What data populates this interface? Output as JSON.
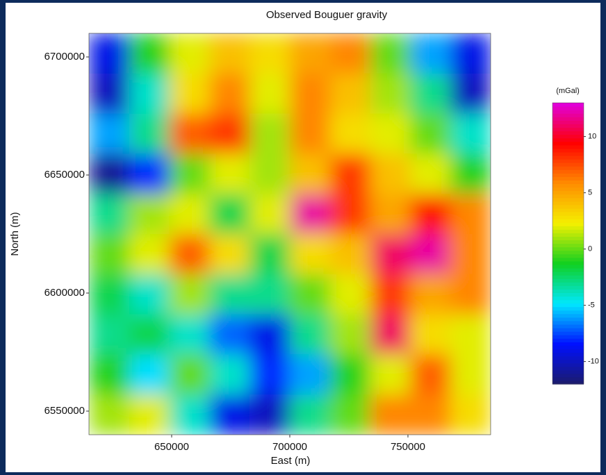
{
  "chart_data": {
    "type": "heatmap",
    "title": "Observed Bouguer gravity",
    "x_label": "East (m)",
    "y_label": "North (m)",
    "colorbar_label": "(mGal)",
    "xlim": [
      615000,
      785000
    ],
    "ylim": [
      6540000,
      6710000
    ],
    "xticks": [
      650000,
      700000,
      750000
    ],
    "yticks": [
      6550000,
      6600000,
      6650000,
      6700000
    ],
    "clim": [
      -12,
      13
    ],
    "cticks": [
      -10,
      -5,
      0,
      5,
      10
    ],
    "colorscale": [
      "#1c1c6a",
      "#0010ff",
      "#00e8ff",
      "#10d020",
      "#f4f000",
      "#ff8c00",
      "#ff0000",
      "#e000e0"
    ],
    "z": [
      [
        -9,
        -1,
        2,
        4,
        3,
        5,
        6,
        0,
        -6,
        -9
      ],
      [
        -10,
        -4,
        3,
        6,
        2,
        6,
        4,
        1,
        -3,
        -10
      ],
      [
        -6,
        -3,
        7,
        8,
        1,
        6,
        3,
        2,
        0,
        -4
      ],
      [
        -11,
        -8,
        0,
        2,
        1,
        4,
        8,
        4,
        2,
        -1
      ],
      [
        -3,
        1,
        2,
        -2,
        2,
        12,
        8,
        5,
        9,
        6
      ],
      [
        0,
        2,
        7,
        3,
        -2,
        3,
        4,
        11,
        12,
        6
      ],
      [
        -2,
        -4,
        1,
        -3,
        -3,
        0,
        2,
        8,
        5,
        6
      ],
      [
        -3,
        -2,
        -4,
        -7,
        -9,
        -3,
        1,
        11,
        3,
        2
      ],
      [
        -1,
        -5,
        0,
        -4,
        -8,
        -6,
        -1,
        2,
        7,
        2
      ],
      [
        1,
        2,
        -4,
        -9,
        -10,
        -3,
        0,
        6,
        6,
        3
      ]
    ]
  }
}
